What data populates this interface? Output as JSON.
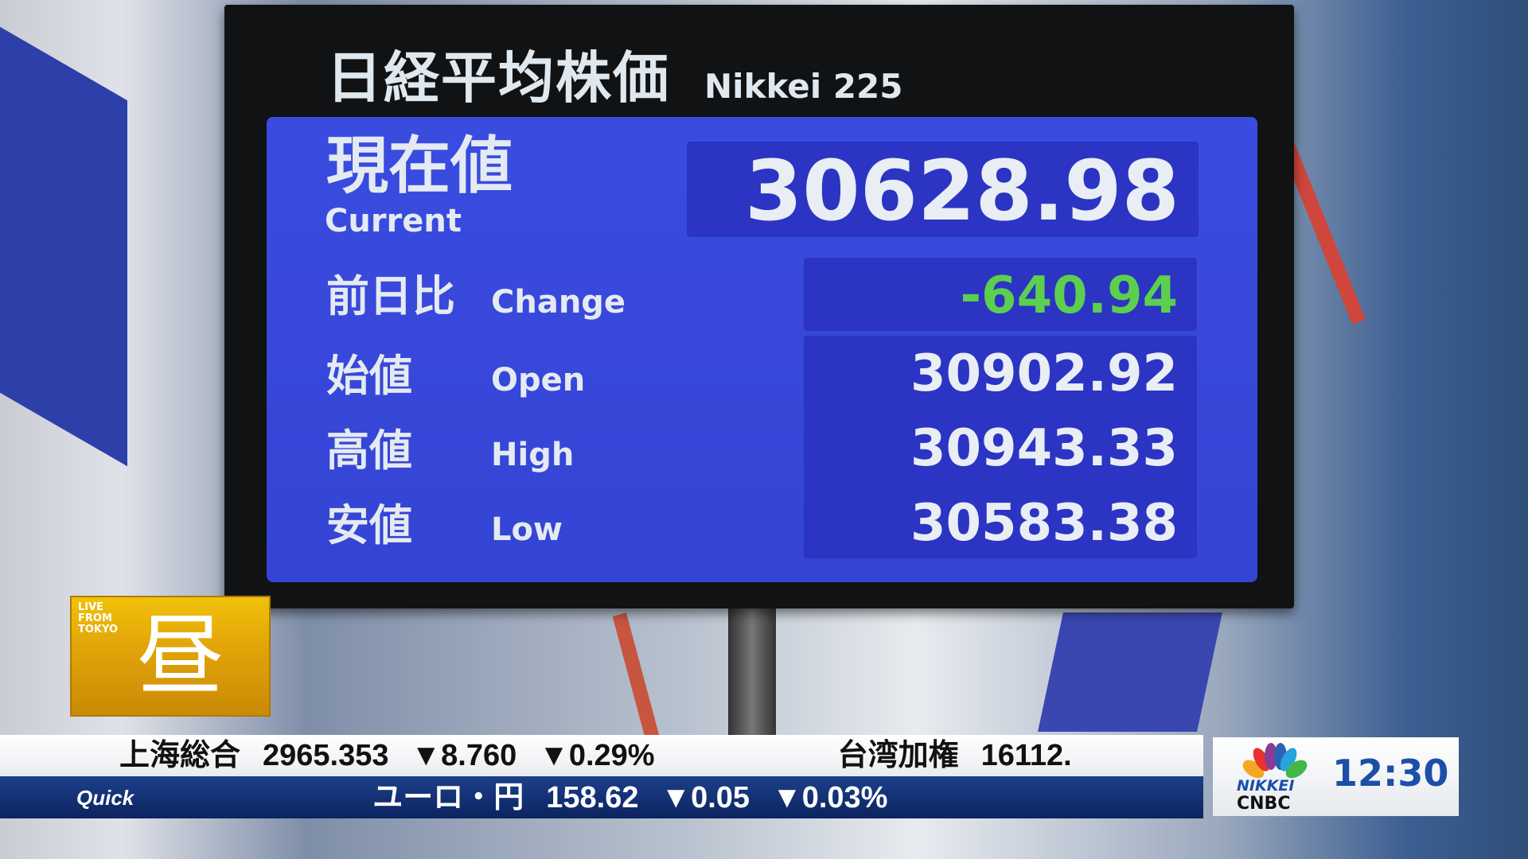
{
  "board": {
    "title_jp": "日経平均株価",
    "title_en": "Nikkei 225",
    "current": {
      "label_jp": "現在値",
      "label_en": "Current",
      "value": "30628.98"
    },
    "rows": [
      {
        "label_jp": "前日比",
        "label_en": "Change",
        "value": "-640.94",
        "color": "#5ccf4e"
      },
      {
        "label_jp": "始値",
        "label_en": "Open",
        "value": "30902.92"
      },
      {
        "label_jp": "高値",
        "label_en": "High",
        "value": "30943.33"
      },
      {
        "label_jp": "安値",
        "label_en": "Low",
        "value": "30583.38"
      }
    ]
  },
  "program_logo": {
    "small": "LIVE FROM TOKYO",
    "big": "昼"
  },
  "ticker_top": [
    {
      "name": "上海総合",
      "value": "2965.353",
      "change": "▼8.760",
      "pct": "▼0.29%"
    },
    {
      "name": "台湾加権",
      "value": "16112."
    }
  ],
  "ticker_bottom": {
    "source": "Quick",
    "name": "ユーロ・円",
    "value": "158.62",
    "change": "▼0.05",
    "pct": "▼0.03%"
  },
  "brand": {
    "line1": "NIKKEI",
    "line2": "CNBC",
    "clock": "12:30"
  }
}
